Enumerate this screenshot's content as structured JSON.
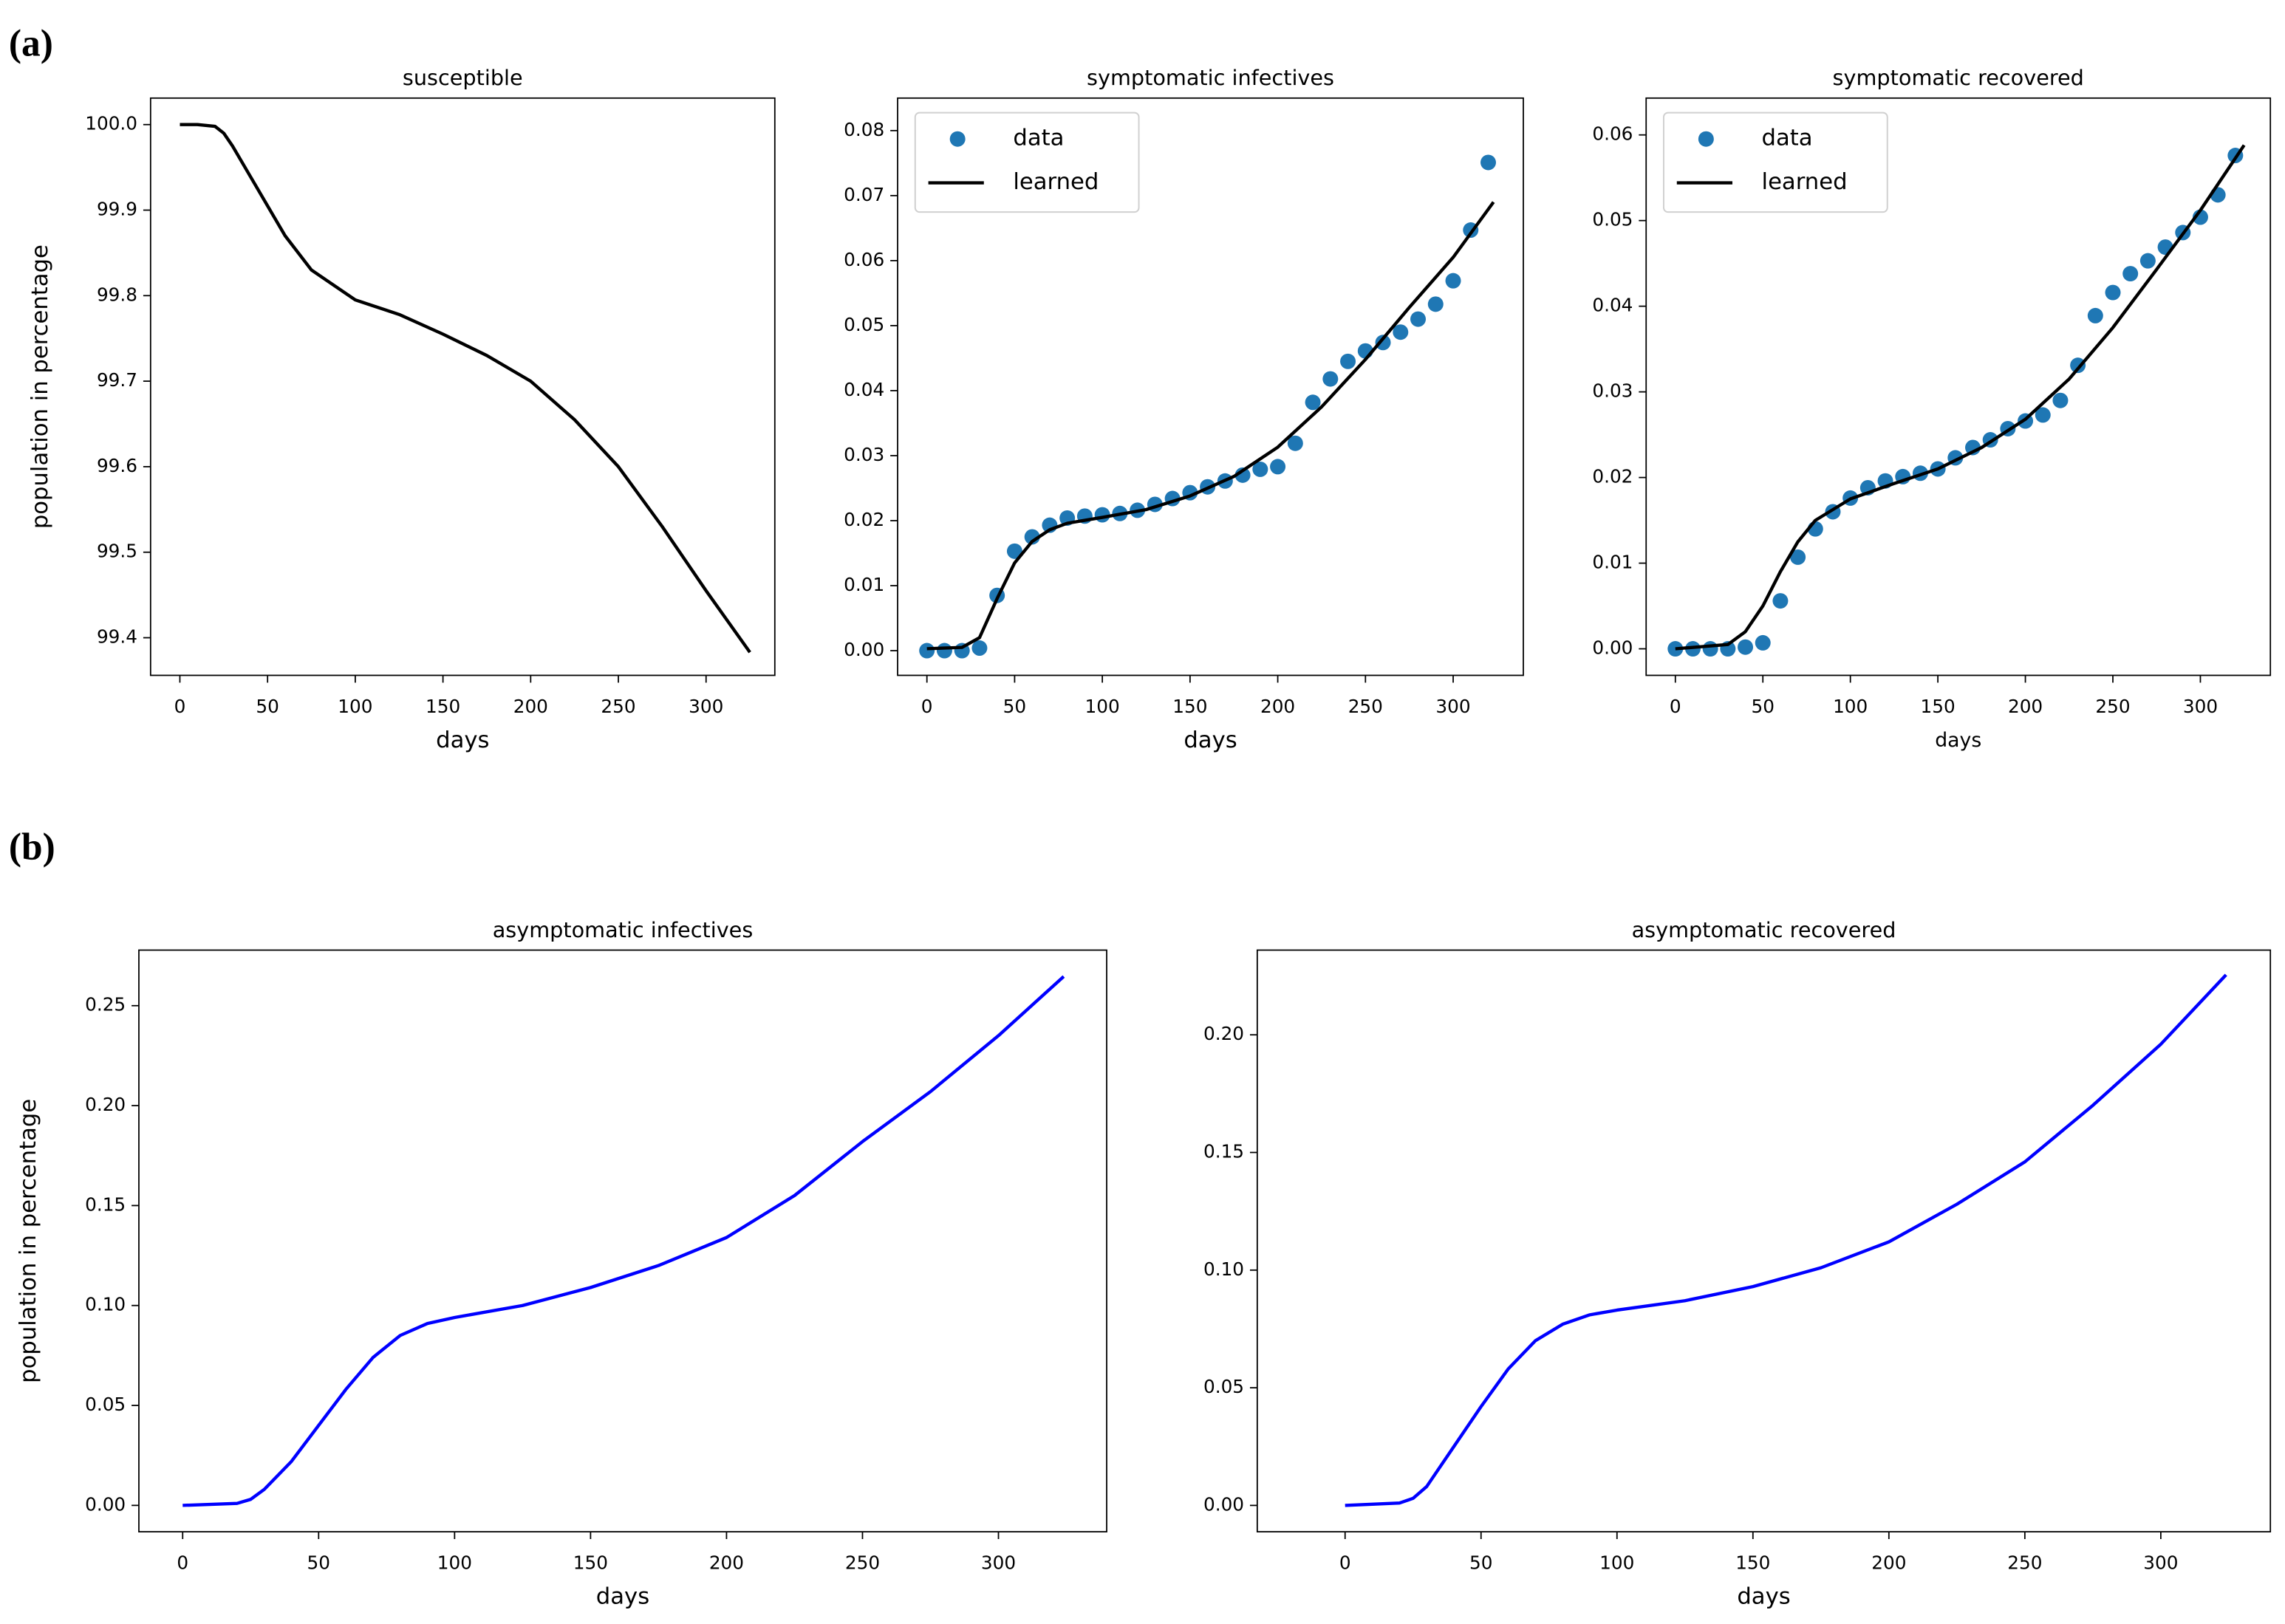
{
  "panel_labels": [
    "(a)",
    "(b)"
  ],
  "chart_data": [
    {
      "type": "line",
      "title": "susceptible",
      "x_label": "days",
      "y_label": "population in percentage",
      "xlim": [
        -16.7,
        339.2
      ],
      "ylim": [
        99.356,
        100.031
      ],
      "xticks": [
        0,
        50,
        100,
        150,
        200,
        250,
        300
      ],
      "yticks": [
        99.4,
        99.5,
        99.6,
        99.7,
        99.8,
        99.9,
        {
          "value": 100,
          "label": "100.0"
        }
      ],
      "series": [
        {
          "mode": "line",
          "color": "#000000",
          "x": [
            0,
            10,
            20,
            25,
            30,
            40,
            50,
            60,
            75,
            100,
            125,
            150,
            175,
            200,
            225,
            250,
            275,
            300,
            325
          ],
          "values": [
            100.0,
            100.0,
            99.998,
            99.99,
            99.975,
            99.94,
            99.905,
            99.87,
            99.83,
            99.795,
            99.778,
            99.755,
            99.73,
            99.7,
            99.655,
            99.6,
            99.53,
            99.455,
            99.383
          ]
        }
      ]
    },
    {
      "type": "line",
      "title": "symptomatic infectives",
      "x_label": "days",
      "legend": "upper left",
      "xlim": [
        -16.7,
        340
      ],
      "ylim": [
        -0.0038,
        0.085
      ],
      "xticks": [
        0,
        50,
        100,
        150,
        200,
        250,
        300
      ],
      "yticks": [
        {
          "value": 0,
          "label": "0.00"
        },
        0.01,
        0.02,
        0.03,
        0.04,
        0.05,
        0.06,
        0.07,
        0.08
      ],
      "series": [
        {
          "name": "data",
          "mode": "markers",
          "color": "#1f77b4",
          "x": [
            0,
            10,
            20,
            30,
            40,
            50,
            60,
            70,
            80,
            90,
            100,
            110,
            120,
            130,
            140,
            150,
            160,
            170,
            180,
            190,
            200,
            210,
            220,
            230,
            240,
            250,
            260,
            270,
            280,
            290,
            300,
            310,
            320
          ],
          "values": [
            0,
            0,
            0,
            0.0004,
            0.0085,
            0.0153,
            0.0175,
            0.0193,
            0.0204,
            0.0207,
            0.0209,
            0.0211,
            0.0216,
            0.0225,
            0.0234,
            0.0243,
            0.0252,
            0.0261,
            0.027,
            0.0279,
            0.0283,
            0.0319,
            0.0382,
            0.0418,
            0.0445,
            0.0461,
            0.0474,
            0.049,
            0.051,
            0.0533,
            0.0569,
            0.0647,
            0.0751
          ]
        },
        {
          "name": "learned",
          "mode": "line",
          "color": "#000000",
          "x": [
            0,
            20,
            30,
            40,
            50,
            60,
            70,
            80,
            100,
            125,
            150,
            175,
            200,
            225,
            250,
            275,
            300,
            323
          ],
          "values": [
            0.0003,
            0.0005,
            0.002,
            0.008,
            0.0135,
            0.0168,
            0.0186,
            0.0196,
            0.0205,
            0.0217,
            0.0238,
            0.0268,
            0.0313,
            0.0375,
            0.0448,
            0.0528,
            0.0605,
            0.069
          ]
        }
      ]
    },
    {
      "type": "line",
      "title": "symptomatic recovered",
      "x_label": "days",
      "legend": "upper left",
      "xlim": [
        -16.7,
        340
      ],
      "ylim": [
        -0.0031,
        0.0643
      ],
      "xticks": [
        0,
        50,
        100,
        150,
        200,
        250,
        300
      ],
      "yticks": [
        {
          "value": 0,
          "label": "0.00"
        },
        0.01,
        0.02,
        0.03,
        0.04,
        0.05,
        0.06
      ],
      "series": [
        {
          "name": "data",
          "mode": "markers",
          "color": "#1f77b4",
          "x": [
            0,
            10,
            20,
            30,
            40,
            50,
            60,
            70,
            80,
            90,
            100,
            110,
            120,
            130,
            140,
            150,
            160,
            170,
            180,
            190,
            200,
            210,
            220,
            230,
            240,
            250,
            260,
            270,
            280,
            290,
            300,
            310,
            320
          ],
          "values": [
            0,
            0,
            0,
            0,
            0.0002,
            0.0007,
            0.0056,
            0.0107,
            0.014,
            0.016,
            0.0176,
            0.0188,
            0.0196,
            0.0201,
            0.0205,
            0.021,
            0.0223,
            0.0235,
            0.0244,
            0.0257,
            0.0266,
            0.0273,
            0.029,
            0.0331,
            0.0389,
            0.0416,
            0.0438,
            0.0453,
            0.0469,
            0.0486,
            0.0504,
            0.053,
            0.0576
          ]
        },
        {
          "name": "learned",
          "mode": "line",
          "color": "#000000",
          "x": [
            0,
            30,
            40,
            50,
            60,
            70,
            80,
            100,
            125,
            150,
            175,
            200,
            225,
            250,
            275,
            300,
            325
          ],
          "values": [
            0,
            0.0005,
            0.002,
            0.005,
            0.009,
            0.0125,
            0.015,
            0.0175,
            0.0193,
            0.021,
            0.0235,
            0.0268,
            0.0315,
            0.0375,
            0.0443,
            0.0512,
            0.0588
          ]
        }
      ]
    },
    {
      "type": "line",
      "title": "asymptomatic infectives",
      "x_label": "days",
      "y_label": "population in percentage",
      "xlim": [
        -16.1,
        339.8
      ],
      "ylim": [
        -0.0132,
        0.2778
      ],
      "xticks": [
        0,
        50,
        100,
        150,
        200,
        250,
        300
      ],
      "yticks": [
        {
          "value": 0,
          "label": "0.00"
        },
        0.05,
        {
          "value": 0.1,
          "label": "0.10"
        },
        0.15,
        {
          "value": 0.2,
          "label": "0.20"
        },
        0.25
      ],
      "series": [
        {
          "mode": "line",
          "color": "#0000ff",
          "x": [
            0,
            20,
            25,
            30,
            40,
            50,
            60,
            70,
            80,
            90,
            100,
            125,
            150,
            175,
            200,
            225,
            250,
            275,
            300,
            324
          ],
          "values": [
            0,
            0.001,
            0.003,
            0.008,
            0.022,
            0.04,
            0.058,
            0.074,
            0.085,
            0.091,
            0.094,
            0.1,
            0.109,
            0.12,
            0.134,
            0.155,
            0.182,
            0.207,
            0.235,
            0.2646
          ]
        }
      ]
    },
    {
      "type": "line",
      "title": "asymptomatic recovered",
      "x_label": "days",
      "xlim": [
        -32.3,
        340.3
      ],
      "ylim": [
        -0.0112,
        0.236
      ],
      "xticks": [
        0,
        50,
        100,
        150,
        200,
        250,
        300
      ],
      "yticks": [
        {
          "value": 0,
          "label": "0.00"
        },
        0.05,
        {
          "value": 0.1,
          "label": "0.10"
        },
        0.15,
        {
          "value": 0.2,
          "label": "0.20"
        }
      ],
      "series": [
        {
          "mode": "line",
          "color": "#0000ff",
          "x": [
            0,
            20,
            25,
            30,
            40,
            50,
            60,
            70,
            80,
            90,
            100,
            125,
            150,
            175,
            200,
            225,
            250,
            275,
            300,
            324
          ],
          "values": [
            0,
            0.001,
            0.003,
            0.008,
            0.025,
            0.042,
            0.058,
            0.07,
            0.077,
            0.081,
            0.083,
            0.087,
            0.093,
            0.101,
            0.112,
            0.128,
            0.146,
            0.17,
            0.196,
            0.2255
          ]
        }
      ]
    }
  ]
}
